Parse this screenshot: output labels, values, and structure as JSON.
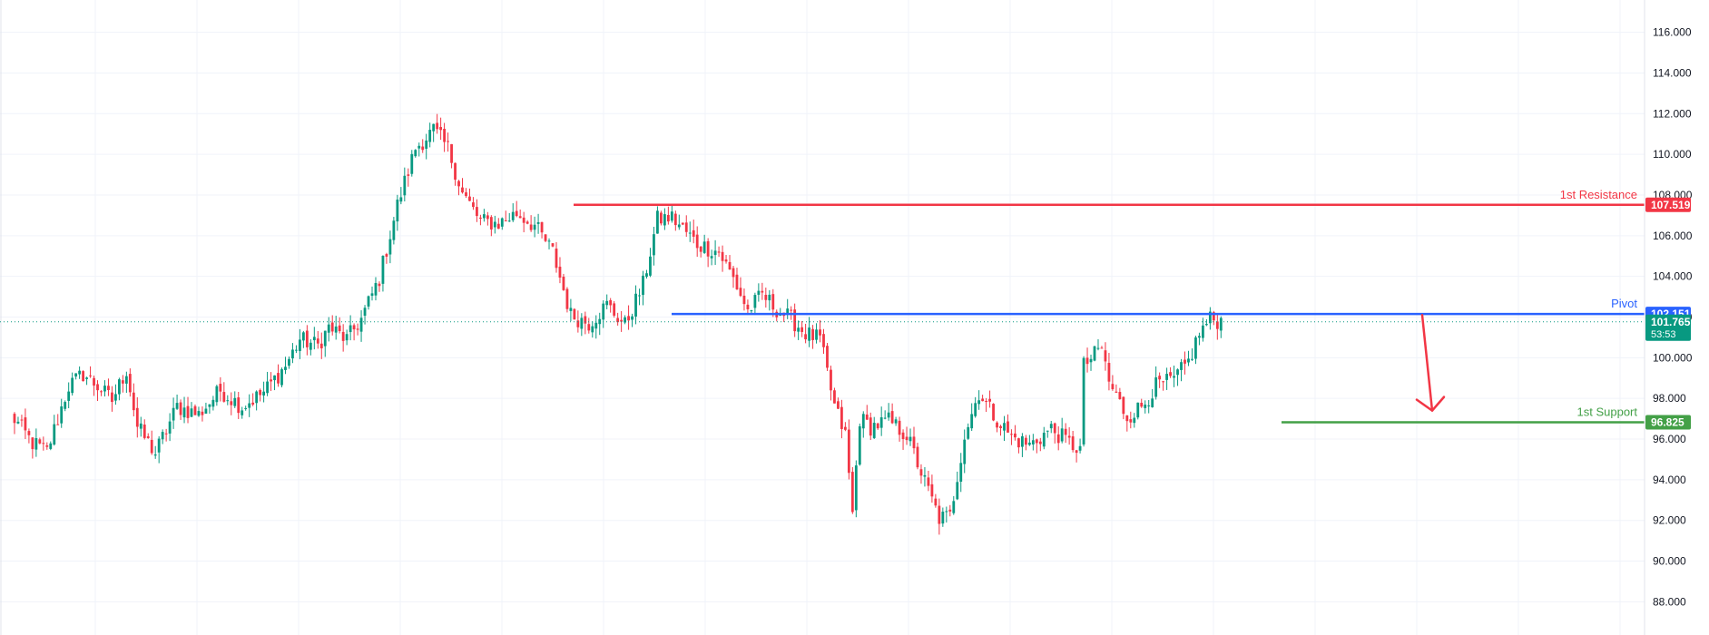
{
  "chart_data": {
    "type": "candlestick",
    "ylim": [
      86.5,
      117.5
    ],
    "y_ticks": [
      "88.000",
      "90.000",
      "92.000",
      "94.000",
      "96.000",
      "98.000",
      "100.000",
      "102.000",
      "104.000",
      "106.000",
      "108.000",
      "110.000",
      "112.000",
      "114.000",
      "116.000"
    ],
    "grid": true,
    "bar_count": 335,
    "colors": {
      "up": "#089981",
      "down": "#f23645",
      "grid": "#f0f3fa",
      "axis_text": "#131722"
    },
    "anchors": [
      [
        0,
        97.2
      ],
      [
        6,
        95.8
      ],
      [
        10,
        95.4
      ],
      [
        13,
        97.0
      ],
      [
        16,
        98.6
      ],
      [
        20,
        99.2
      ],
      [
        24,
        98.6
      ],
      [
        28,
        97.9
      ],
      [
        32,
        99.4
      ],
      [
        35,
        96.6
      ],
      [
        40,
        95.3
      ],
      [
        46,
        97.6
      ],
      [
        52,
        97.2
      ],
      [
        58,
        98.4
      ],
      [
        64,
        97.6
      ],
      [
        70,
        98.3
      ],
      [
        76,
        99.6
      ],
      [
        80,
        100.9
      ],
      [
        85,
        100.6
      ],
      [
        88,
        101.5
      ],
      [
        93,
        100.9
      ],
      [
        97,
        101.9
      ],
      [
        102,
        103.9
      ],
      [
        107,
        107.5
      ],
      [
        112,
        110.3
      ],
      [
        117,
        111.2
      ],
      [
        121,
        110.3
      ],
      [
        125,
        108.1
      ],
      [
        130,
        106.7
      ],
      [
        135,
        106.6
      ],
      [
        140,
        107.1
      ],
      [
        145,
        106.5
      ],
      [
        150,
        105.2
      ],
      [
        155,
        102.1
      ],
      [
        160,
        101.7
      ],
      [
        165,
        102.6
      ],
      [
        170,
        101.6
      ],
      [
        175,
        103.6
      ],
      [
        179,
        106.8
      ],
      [
        183,
        106.9
      ],
      [
        190,
        105.6
      ],
      [
        196,
        105.2
      ],
      [
        200,
        103.9
      ],
      [
        204,
        102.3
      ],
      [
        208,
        103.1
      ],
      [
        212,
        102.4
      ],
      [
        216,
        101.9
      ],
      [
        220,
        101.2
      ],
      [
        224,
        100.9
      ],
      [
        228,
        97.6
      ],
      [
        231,
        96.2
      ],
      [
        233,
        92.3
      ],
      [
        235,
        97.0
      ],
      [
        238,
        96.6
      ],
      [
        243,
        96.9
      ],
      [
        248,
        96.2
      ],
      [
        253,
        93.9
      ],
      [
        257,
        92.1
      ],
      [
        260,
        92.2
      ],
      [
        264,
        96.2
      ],
      [
        268,
        98.3
      ],
      [
        272,
        97.2
      ],
      [
        277,
        96.1
      ],
      [
        282,
        95.7
      ],
      [
        288,
        96.5
      ],
      [
        293,
        95.8
      ],
      [
        296,
        95.5
      ],
      [
        297,
        99.6
      ],
      [
        302,
        100.5
      ],
      [
        304,
        98.8
      ],
      [
        306,
        98.1
      ],
      [
        309,
        97.1
      ],
      [
        313,
        97.6
      ],
      [
        317,
        98.6
      ],
      [
        322,
        98.9
      ],
      [
        326,
        99.8
      ],
      [
        329,
        101.2
      ],
      [
        332,
        101.9
      ],
      [
        335,
        101.8
      ]
    ],
    "levels": [
      {
        "id": "resistance",
        "label": "1st Resistance",
        "value": "107.519",
        "price": 107.519,
        "color": "#f23645"
      },
      {
        "id": "pivot",
        "label": "Pivot",
        "value": "102.151",
        "price": 102.151,
        "color": "#2962ff"
      },
      {
        "id": "support",
        "label": "1st Support",
        "value": "96.825",
        "price": 96.825,
        "color": "#43a047"
      }
    ],
    "current_price": {
      "value": "101.765",
      "price": 101.765,
      "countdown": "53:53",
      "color": "#089981"
    },
    "projection_arrow": {
      "from": 102.1,
      "to": 97.4,
      "color": "#f23645"
    }
  }
}
